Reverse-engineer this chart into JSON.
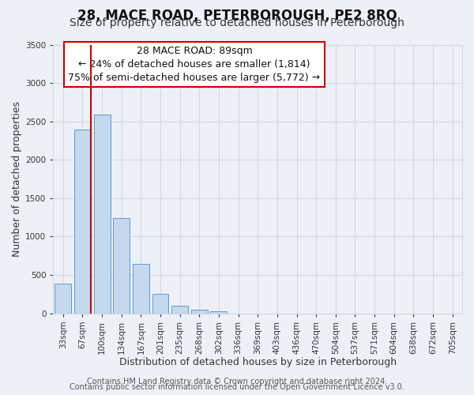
{
  "title": "28, MACE ROAD, PETERBOROUGH, PE2 8RQ",
  "subtitle": "Size of property relative to detached houses in Peterborough",
  "xlabel": "Distribution of detached houses by size in Peterborough",
  "ylabel": "Number of detached properties",
  "footer_line1": "Contains HM Land Registry data © Crown copyright and database right 2024.",
  "footer_line2": "Contains public sector information licensed under the Open Government Licence v3.0.",
  "bar_labels": [
    "33sqm",
    "67sqm",
    "100sqm",
    "134sqm",
    "167sqm",
    "201sqm",
    "235sqm",
    "268sqm",
    "302sqm",
    "336sqm",
    "369sqm",
    "403sqm",
    "436sqm",
    "470sqm",
    "504sqm",
    "537sqm",
    "571sqm",
    "604sqm",
    "638sqm",
    "672sqm",
    "705sqm"
  ],
  "bar_values": [
    390,
    2390,
    2590,
    1240,
    640,
    250,
    100,
    50,
    30,
    0,
    0,
    0,
    0,
    0,
    0,
    0,
    0,
    0,
    0,
    0,
    0
  ],
  "bar_color": "#c5d8ed",
  "bar_edge_color": "#5b9bd5",
  "annotation_line1": "28 MACE ROAD: 89sqm",
  "annotation_line2": "← 24% of detached houses are smaller (1,814)",
  "annotation_line3": "75% of semi-detached houses are larger (5,772) →",
  "annotation_box_color": "#ffffff",
  "annotation_box_edge_color": "#cc0000",
  "vline_color": "#cc0000",
  "vline_bar_index": 1,
  "ylim": [
    0,
    3500
  ],
  "yticks": [
    0,
    500,
    1000,
    1500,
    2000,
    2500,
    3000,
    3500
  ],
  "grid_color": "#d0d8e4",
  "bg_color": "#edf1f7",
  "title_fontsize": 12,
  "subtitle_fontsize": 10,
  "axis_label_fontsize": 9,
  "tick_fontsize": 7.5,
  "annotation_fontsize": 9,
  "footer_fontsize": 7
}
